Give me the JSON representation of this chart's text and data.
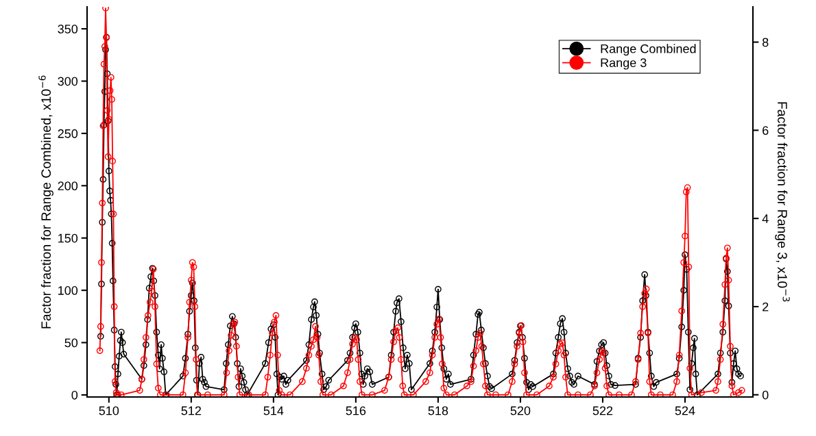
{
  "chart_data": {
    "type": "line",
    "ylabel": "Factor fraction for Range Combined, x10$^{−6}$",
    "y2label": "Factor fraction for Range 3, x10$^{−3}$",
    "xlim": [
      509.47,
      525.65
    ],
    "xticks": [
      510,
      512,
      514,
      516,
      518,
      520,
      522,
      524
    ],
    "ylim": [
      -2,
      371
    ],
    "yticks": [
      0,
      50,
      100,
      150,
      200,
      250,
      300,
      350
    ],
    "y2lim": [
      -0.05,
      8.8
    ],
    "y2ticks": [
      0,
      2,
      4,
      6,
      8
    ],
    "grid": false,
    "legend": "top right",
    "marker": "circle",
    "line_style": "solid",
    "series": [
      {
        "name": "Range Combined",
        "color": "#000000",
        "x": [
          509.8,
          509.82,
          509.84,
          509.86,
          509.88,
          509.9,
          509.92,
          509.94,
          509.96,
          509.98,
          510.0,
          510.02,
          510.04,
          510.06,
          510.08,
          510.1,
          510.13,
          510.15,
          510.17,
          510.19,
          510.22,
          510.25,
          510.28,
          510.3,
          510.33,
          510.36,
          510.8,
          510.85,
          510.9,
          510.94,
          510.98,
          511.02,
          511.06,
          511.09,
          511.12,
          511.16,
          511.2,
          511.23,
          511.27,
          511.3,
          511.34,
          511.38,
          511.8,
          511.86,
          511.92,
          511.96,
          512.0,
          512.03,
          512.07,
          512.1,
          512.13,
          512.16,
          512.2,
          512.24,
          512.28,
          512.32,
          512.36,
          512.8,
          512.85,
          512.9,
          512.95,
          513.0,
          513.04,
          513.08,
          513.12,
          513.16,
          513.2,
          513.24,
          513.28,
          513.32,
          513.36,
          513.8,
          513.88,
          513.94,
          514.0,
          514.04,
          514.08,
          514.11,
          514.15,
          514.2,
          514.25,
          514.3,
          514.35,
          514.8,
          514.86,
          514.92,
          514.97,
          515.0,
          515.04,
          515.08,
          515.12,
          515.18,
          515.22,
          515.28,
          515.34,
          515.8,
          515.86,
          515.92,
          515.97,
          516.0,
          516.05,
          516.1,
          516.14,
          516.18,
          516.22,
          516.28,
          516.34,
          516.4,
          516.8,
          516.86,
          516.92,
          516.97,
          517.0,
          517.05,
          517.1,
          517.15,
          517.2,
          517.25,
          517.3,
          517.35,
          517.8,
          517.86,
          517.92,
          517.97,
          518.0,
          518.04,
          518.09,
          518.14,
          518.2,
          518.25,
          518.3,
          518.8,
          518.86,
          518.92,
          518.97,
          519.0,
          519.05,
          519.1,
          519.15,
          519.2,
          519.25,
          519.3,
          519.8,
          519.86,
          519.92,
          519.97,
          520.0,
          520.05,
          520.1,
          520.15,
          520.2,
          520.25,
          520.3,
          520.8,
          520.86,
          520.92,
          520.97,
          521.02,
          521.06,
          521.1,
          521.15,
          521.2,
          521.25,
          521.3,
          521.4,
          521.8,
          521.86,
          521.92,
          521.97,
          522.02,
          522.06,
          522.1,
          522.15,
          522.2,
          522.3,
          522.8,
          522.86,
          522.92,
          522.97,
          523.02,
          523.05,
          523.1,
          523.14,
          523.18,
          523.24,
          523.3,
          523.8,
          523.86,
          523.92,
          523.97,
          524.0,
          524.04,
          524.08,
          524.12,
          524.16,
          524.2,
          524.23,
          524.26,
          524.3,
          524.8,
          524.86,
          524.92,
          524.97,
          525.0,
          525.03,
          525.06,
          525.1,
          525.14,
          525.18,
          525.22,
          525.26,
          525.3,
          525.35
        ],
        "values": [
          56,
          106,
          165,
          206,
          258,
          290,
          330,
          342,
          307,
          262,
          214,
          195,
          186,
          173,
          145,
          109,
          62,
          27,
          10,
          0,
          20,
          37,
          52,
          60,
          50,
          39,
          15,
          28,
          48,
          72,
          102,
          113,
          121,
          109,
          95,
          60,
          38,
          25,
          48,
          35,
          22,
          0,
          18,
          35,
          58,
          80,
          95,
          107,
          90,
          45,
          14,
          0,
          30,
          36,
          15,
          12,
          8,
          5,
          30,
          48,
          66,
          75,
          68,
          55,
          30,
          8,
          25,
          18,
          12,
          5,
          0,
          30,
          50,
          63,
          67,
          55,
          20,
          0,
          17,
          15,
          18,
          10,
          14,
          33,
          48,
          72,
          84,
          89,
          76,
          58,
          40,
          20,
          5,
          8,
          14,
          33,
          40,
          55,
          64,
          68,
          60,
          40,
          20,
          10,
          18,
          25,
          22,
          10,
          17,
          38,
          60,
          80,
          88,
          92,
          70,
          45,
          25,
          38,
          30,
          5,
          30,
          42,
          60,
          84,
          101,
          72,
          45,
          25,
          15,
          20,
          10,
          15,
          38,
          58,
          77,
          79,
          62,
          45,
          30,
          18,
          8,
          6,
          20,
          33,
          50,
          60,
          66,
          55,
          35,
          12,
          5,
          10,
          8,
          20,
          40,
          55,
          68,
          73,
          60,
          40,
          25,
          18,
          12,
          10,
          18,
          10,
          32,
          42,
          48,
          50,
          40,
          28,
          18,
          10,
          9,
          10,
          35,
          55,
          90,
          115,
          95,
          60,
          40,
          18,
          8,
          12,
          20,
          35,
          65,
          100,
          134,
          120,
          60,
          5,
          30,
          45,
          54,
          20,
          0,
          20,
          40,
          60,
          90,
          130,
          118,
          85,
          40,
          12,
          30,
          42,
          25,
          20,
          18
        ]
      },
      {
        "name": "Range 3",
        "color": "#ff0000",
        "axis": "y2",
        "x": [
          509.78,
          509.8,
          509.82,
          509.84,
          509.86,
          509.88,
          509.9,
          509.92,
          509.94,
          509.96,
          509.98,
          510.0,
          510.03,
          510.05,
          510.07,
          510.09,
          510.11,
          510.13,
          510.15,
          510.18,
          510.22,
          510.3,
          510.75,
          510.8,
          510.85,
          510.9,
          510.95,
          511.0,
          511.04,
          511.08,
          511.12,
          511.16,
          511.2,
          511.25,
          511.4,
          511.8,
          511.86,
          511.92,
          511.96,
          512.0,
          512.03,
          512.06,
          512.09,
          512.12,
          512.15,
          512.4,
          512.8,
          512.86,
          512.92,
          512.97,
          513.02,
          513.06,
          513.1,
          513.14,
          513.18,
          513.4,
          513.8,
          513.86,
          513.92,
          513.97,
          514.02,
          514.06,
          514.1,
          514.14,
          514.2,
          514.4,
          514.7,
          514.8,
          514.86,
          514.92,
          514.97,
          515.02,
          515.06,
          515.1,
          515.15,
          515.2,
          515.4,
          515.7,
          515.8,
          515.86,
          515.92,
          515.97,
          516.02,
          516.06,
          516.1,
          516.15,
          516.4,
          516.7,
          516.8,
          516.86,
          516.92,
          516.97,
          517.02,
          517.06,
          517.1,
          517.14,
          517.18,
          517.4,
          517.7,
          517.8,
          517.86,
          517.92,
          517.97,
          518.02,
          518.06,
          518.1,
          518.14,
          518.2,
          518.4,
          518.7,
          518.8,
          518.86,
          518.92,
          518.97,
          519.02,
          519.06,
          519.1,
          519.15,
          519.2,
          519.4,
          519.7,
          519.8,
          519.86,
          519.92,
          519.97,
          520.02,
          520.06,
          520.1,
          520.15,
          520.4,
          520.7,
          520.8,
          520.86,
          520.92,
          520.97,
          521.02,
          521.06,
          521.1,
          521.15,
          521.4,
          521.7,
          521.8,
          521.86,
          521.92,
          521.97,
          522.02,
          522.06,
          522.1,
          522.15,
          522.4,
          522.7,
          522.8,
          522.86,
          522.92,
          522.97,
          523.02,
          523.06,
          523.1,
          523.14,
          523.18,
          523.4,
          523.7,
          523.8,
          523.86,
          523.92,
          523.97,
          524.0,
          524.03,
          524.06,
          524.09,
          524.12,
          524.16,
          524.4,
          524.75,
          524.8,
          524.86,
          524.92,
          524.97,
          525.0,
          525.03,
          525.06,
          525.1,
          525.14,
          525.18,
          525.3,
          525.38
        ],
        "values": [
          1.0,
          1.55,
          3.0,
          4.35,
          6.1,
          7.5,
          7.9,
          8.77,
          8.1,
          6.45,
          5.4,
          6.25,
          6.9,
          7.2,
          6.7,
          5.3,
          4.1,
          2.0,
          0.3,
          0.05,
          0,
          0,
          0.1,
          0.35,
          0.8,
          1.3,
          1.8,
          2.1,
          2.35,
          2.85,
          2.0,
          0.7,
          0.15,
          0,
          0,
          0,
          0.5,
          1.3,
          2.1,
          2.6,
          3.0,
          2.9,
          2.0,
          0.8,
          0,
          0,
          0,
          0.5,
          1.0,
          1.35,
          1.6,
          1.65,
          1.1,
          0.4,
          0,
          0,
          0,
          0.4,
          0.9,
          1.4,
          1.65,
          1.8,
          0.9,
          0.1,
          0,
          0,
          0.3,
          0.6,
          0.9,
          1.1,
          1.25,
          1.55,
          1.3,
          0.9,
          0.3,
          0,
          0,
          0.2,
          0.5,
          0.8,
          1.15,
          1.3,
          1.25,
          0.8,
          0.3,
          0,
          0,
          0.1,
          0.4,
          0.8,
          1.2,
          1.45,
          1.52,
          1.3,
          0.8,
          0.2,
          0,
          0,
          0.3,
          0.5,
          0.9,
          1.3,
          1.6,
          1.72,
          1.3,
          0.7,
          0.15,
          0,
          0,
          0.2,
          0.3,
          0.65,
          1.0,
          1.3,
          1.4,
          1.1,
          0.7,
          0.2,
          0,
          0,
          0,
          0.3,
          0.7,
          1.1,
          1.4,
          1.57,
          1.2,
          0.5,
          0,
          0,
          0.2,
          0.4,
          0.7,
          1.0,
          1.15,
          1.18,
          0.9,
          0.4,
          0,
          0,
          0,
          0.2,
          0.5,
          0.8,
          1.0,
          0.95,
          0.6,
          0.2,
          0,
          0,
          0,
          0.3,
          0.8,
          1.4,
          2.0,
          2.3,
          2.4,
          1.4,
          0.3,
          0,
          0,
          0,
          0.3,
          0.9,
          1.9,
          3.0,
          3.6,
          4.6,
          4.7,
          2.9,
          0.6,
          0,
          0.05,
          0.1,
          0.3,
          0.8,
          1.6,
          2.5,
          3.1,
          3.33,
          2.6,
          1.1,
          0.2,
          0,
          0.05,
          0.1
        ]
      }
    ]
  }
}
